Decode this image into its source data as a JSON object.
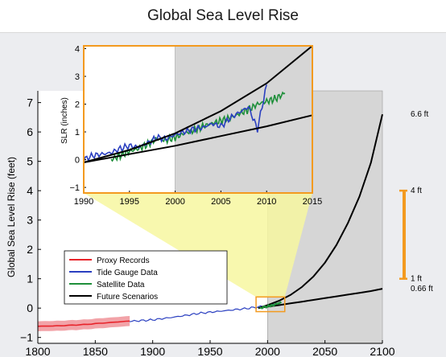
{
  "title": "Global Sea Level Rise",
  "colors": {
    "proxy": "#e8242b",
    "proxy_band": "#f2a3a8",
    "tide": "#2a3fc0",
    "satellite": "#1e8f3a",
    "future": "#000000",
    "future_band": "#d6d6d6",
    "zoom_box": "#f39a1f",
    "highlight": "#f7f7a0",
    "range_bar": "#f39a1f"
  },
  "chart_data": [
    {
      "type": "line",
      "ylabel": "Global Sea Level Rise (feet)",
      "xlim": [
        1800,
        2100
      ],
      "ylim": [
        -1.2,
        7.4
      ],
      "xticks": [
        1800,
        1850,
        1900,
        1950,
        2000,
        2050,
        2100
      ],
      "yticks": [
        -1,
        0,
        1,
        2,
        3,
        4,
        5,
        6,
        7
      ],
      "grid": false,
      "legend_placement": "lower-left",
      "legend": [
        "Proxy Records",
        "Tide Gauge Data",
        "Satellite Data",
        "Future Scenarios"
      ],
      "series": [
        {
          "name": "Proxy Records",
          "x": [
            1800,
            1820,
            1840,
            1860,
            1880
          ],
          "y": [
            -0.62,
            -0.6,
            -0.56,
            -0.5,
            -0.44
          ]
        },
        {
          "name": "Tide Gauge Data",
          "x": [
            1880,
            1900,
            1920,
            1940,
            1960,
            1980,
            2000,
            2010
          ],
          "y": [
            -0.45,
            -0.4,
            -0.3,
            -0.18,
            -0.1,
            -0.02,
            0.08,
            0.15
          ]
        },
        {
          "name": "Satellite Data",
          "x": [
            1993,
            2000,
            2005,
            2012
          ],
          "y": [
            0.0,
            0.06,
            0.1,
            0.2
          ]
        },
        {
          "name": "Future Scenarios",
          "x": [
            1992,
            2000,
            2010,
            2020,
            2030,
            2040,
            2050,
            2060,
            2070,
            2080,
            2090,
            2100
          ],
          "y_high": [
            0.0,
            0.1,
            0.25,
            0.45,
            0.72,
            1.08,
            1.55,
            2.15,
            2.9,
            3.8,
            4.95,
            6.6
          ],
          "y_low": [
            0.0,
            0.05,
            0.1,
            0.16,
            0.22,
            0.28,
            0.34,
            0.4,
            0.46,
            0.52,
            0.58,
            0.66
          ]
        }
      ],
      "shaded_region": {
        "x": [
          2000,
          2100
        ]
      },
      "right_annotations": [
        {
          "label": "6.6 ft",
          "y": 6.6
        },
        {
          "label": "4 ft",
          "y": 4.0
        },
        {
          "label": "1 ft",
          "y": 1.0
        },
        {
          "label": "0.66 ft",
          "y": 0.66
        }
      ],
      "range_bar": {
        "from": 1.0,
        "to": 4.0
      }
    },
    {
      "type": "line",
      "ylabel": "SLR (inches)",
      "xlim": [
        1990,
        2015
      ],
      "ylim": [
        -1.2,
        4.1
      ],
      "xticks": [
        1990,
        1995,
        2000,
        2005,
        2010,
        2015
      ],
      "yticks": [
        -1,
        0,
        1,
        2,
        3,
        4
      ],
      "series": [
        {
          "name": "Tide Gauge Data",
          "x": [
            1990,
            1991,
            1992,
            1993,
            1994,
            1995,
            1996,
            1997,
            1998,
            1999,
            2000,
            2001,
            2002,
            2003,
            2004,
            2005,
            2006,
            2007,
            2008,
            2009,
            2010
          ],
          "y": [
            0.0,
            0.15,
            0.2,
            0.25,
            0.4,
            0.5,
            0.45,
            0.6,
            0.8,
            0.75,
            0.9,
            1.0,
            1.1,
            1.15,
            1.3,
            1.2,
            1.5,
            1.7,
            1.9,
            1.1,
            2.7
          ]
        },
        {
          "name": "Satellite Data",
          "x": [
            1993,
            1994,
            1995,
            1996,
            1997,
            1998,
            1999,
            2000,
            2001,
            2002,
            2003,
            2004,
            2005,
            2006,
            2007,
            2008,
            2009,
            2010,
            2011,
            2012
          ],
          "y": [
            0.0,
            0.15,
            0.3,
            0.4,
            0.55,
            0.75,
            0.7,
            0.8,
            0.95,
            1.05,
            1.2,
            1.3,
            1.4,
            1.5,
            1.65,
            1.8,
            2.0,
            2.1,
            2.2,
            2.4
          ]
        },
        {
          "name": "Future Scenarios",
          "x": [
            1990,
            1995,
            2000,
            2005,
            2010,
            2015
          ],
          "y_high": [
            -0.1,
            0.35,
            0.95,
            1.75,
            2.75,
            4.1
          ],
          "y_low": [
            -0.1,
            0.2,
            0.5,
            0.85,
            1.2,
            1.6
          ]
        }
      ],
      "shaded_region": {
        "x": [
          2000,
          2015
        ]
      }
    }
  ]
}
